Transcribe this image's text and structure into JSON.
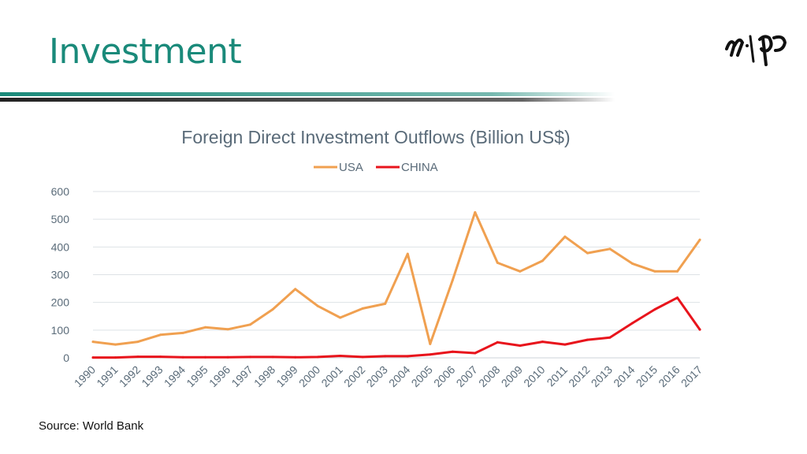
{
  "slide": {
    "title": "Investment",
    "source": "Source: World Bank"
  },
  "colors": {
    "title": "#1a8a7a",
    "usa": "#f0a050",
    "china": "#e8141c",
    "grid": "#dde2e6",
    "text": "#5a6b79"
  },
  "chart_data": {
    "type": "line",
    "title": "Foreign Direct Investment Outflows (Billion US$)",
    "xlabel": "",
    "ylabel": "",
    "legend_position": "top",
    "grid": true,
    "ylim": [
      0,
      600
    ],
    "yticks": [
      0,
      100,
      200,
      300,
      400,
      500,
      600
    ],
    "categories": [
      "1990",
      "1991",
      "1992",
      "1993",
      "1994",
      "1995",
      "1996",
      "1997",
      "1998",
      "1999",
      "2000",
      "2001",
      "2002",
      "2003",
      "2004",
      "2005",
      "2006",
      "2007",
      "2008",
      "2009",
      "2010",
      "2011",
      "2012",
      "2013",
      "2014",
      "2015",
      "2016",
      "2017"
    ],
    "series": [
      {
        "name": "USA",
        "color": "#f0a050",
        "values": [
          58,
          48,
          58,
          83,
          90,
          110,
          103,
          120,
          175,
          248,
          187,
          145,
          178,
          195,
          375,
          50,
          280,
          525,
          343,
          312,
          350,
          437,
          378,
          393,
          340,
          312,
          312,
          426
        ]
      },
      {
        "name": "CHINA",
        "color": "#e8141c",
        "values": [
          1,
          1,
          4,
          4,
          2,
          2,
          2,
          3,
          3,
          2,
          3,
          7,
          3,
          6,
          6,
          12,
          22,
          17,
          56,
          44,
          58,
          48,
          65,
          73,
          125,
          175,
          217,
          102
        ]
      }
    ]
  }
}
